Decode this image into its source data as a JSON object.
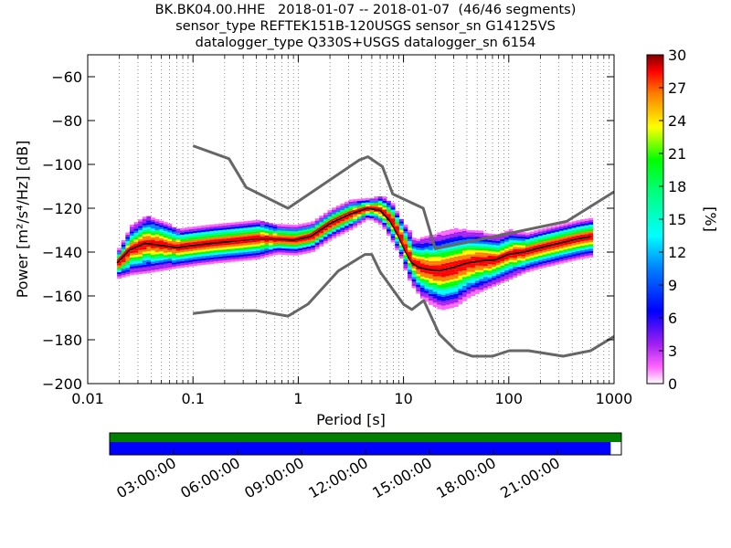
{
  "title_lines": [
    "BK.BK04.00.HHE   2018-01-07 -- 2018-01-07  (46/46 segments)",
    "sensor_type REFTEK151B-120USGS sensor_sn G14125VS",
    "datalogger_type Q330S+USGS datalogger_sn 6154"
  ],
  "chart_data": {
    "type": "heatmap",
    "xlabel": "Period [s]",
    "ylabel": "Power [m²/s⁴/Hz] [dB]",
    "x_scale": "log",
    "xlim": [
      0.01,
      1000
    ],
    "ylim": [
      -200,
      -50
    ],
    "x_ticks": [
      0.01,
      0.1,
      1,
      10,
      100,
      1000
    ],
    "x_tick_labels": [
      "0.01",
      "0.1",
      "1",
      "10",
      "100",
      "1000"
    ],
    "y_ticks": [
      -200,
      -180,
      -160,
      -140,
      -120,
      -100,
      -80,
      -60
    ],
    "y_tick_labels": [
      "−200",
      "−180",
      "−160",
      "−140",
      "−120",
      "−100",
      "−80",
      "−60"
    ],
    "grid": "dotted-vertical",
    "colorbar": {
      "label": "[%]",
      "range": [
        0,
        30
      ],
      "ticks": [
        0,
        3,
        6,
        9,
        12,
        15,
        18,
        21,
        24,
        27,
        30
      ],
      "colormap": [
        "#ffffff",
        "#ff00ff",
        "#8000ff",
        "#0000ff",
        "#0080ff",
        "#00ffff",
        "#00ff80",
        "#00ff00",
        "#ffff00",
        "#ff8000",
        "#ff0000",
        "#800000"
      ]
    },
    "series": [
      {
        "name": "NHNM",
        "color": "#666666",
        "x": [
          0.1,
          0.22,
          0.32,
          0.8,
          3.8,
          4.6,
          6.3,
          7.9,
          15.4,
          20,
          354.8,
          1000
        ],
        "y": [
          -91.5,
          -97.4,
          -110.5,
          -120,
          -98,
          -96.5,
          -101,
          -113.5,
          -120,
          -138.5,
          -126,
          -112.5
        ]
      },
      {
        "name": "NLNM",
        "color": "#666666",
        "x": [
          0.1,
          0.17,
          0.4,
          0.8,
          1.24,
          2.4,
          4.3,
          5.0,
          6.0,
          10.0,
          12.0,
          15.6,
          21.9,
          31.6,
          45,
          70,
          101,
          154,
          328,
          600,
          1000
        ],
        "y": [
          -168,
          -166.7,
          -166.7,
          -169.2,
          -163.7,
          -148.6,
          -141.1,
          -141.1,
          -149,
          -163.8,
          -166.2,
          -162.1,
          -177.5,
          -185,
          -187.5,
          -187.5,
          -185,
          -185,
          -187.5,
          -185,
          -178.5
        ]
      },
      {
        "name": "mean",
        "color": "#000000",
        "x": [
          0.019,
          0.025,
          0.035,
          0.05,
          0.07,
          0.1,
          0.15,
          0.25,
          0.4,
          0.6,
          0.9,
          1.3,
          2.0,
          3.0,
          4.5,
          6.0,
          7.5,
          9.0,
          10.5,
          12.0,
          14.0,
          17.0,
          22.0,
          30.0,
          40.0,
          55.0,
          75.0,
          100.0,
          140.0,
          200.0,
          300.0,
          450.0,
          600.0
        ],
        "y": [
          -145,
          -139,
          -136,
          -137,
          -138,
          -137,
          -136,
          -135,
          -134,
          -134,
          -134.5,
          -133,
          -127,
          -123,
          -120,
          -121,
          -126,
          -133,
          -140,
          -145,
          -147,
          -148,
          -148.5,
          -147,
          -145,
          -144,
          -143.5,
          -141,
          -140,
          -138,
          -136,
          -134,
          -133
        ]
      },
      {
        "name": "mode",
        "color": "#ff0000",
        "x": [
          0.019,
          0.025,
          0.035,
          0.05,
          0.07,
          0.1,
          0.15,
          0.25,
          0.4,
          0.6,
          0.9,
          1.3,
          2.0,
          3.0,
          4.5,
          6.0,
          7.5,
          9.0,
          10.5,
          12.0,
          14.0,
          17.0,
          22.0,
          30.0,
          40.0,
          55.0,
          75.0,
          100.0,
          140.0,
          200.0,
          300.0,
          450.0,
          600.0
        ],
        "y": [
          -144,
          -138,
          -135,
          -136,
          -137,
          -136,
          -135,
          -134.5,
          -133.5,
          -133.5,
          -134,
          -132,
          -126,
          -122,
          -119.5,
          -120,
          -125,
          -132,
          -139,
          -144,
          -146,
          -147,
          -147.5,
          -146,
          -144,
          -143,
          -142.5,
          -140,
          -139,
          -137,
          -135,
          -133,
          -132
        ]
      }
    ],
    "histogram_profile": {
      "x": [
        0.019,
        0.025,
        0.035,
        0.05,
        0.07,
        0.1,
        0.15,
        0.25,
        0.4,
        0.6,
        0.9,
        1.3,
        2.0,
        3.0,
        4.5,
        6.0,
        7.5,
        9.0,
        10.5,
        12.0,
        14.0,
        17.0,
        22.0,
        30.0,
        40.0,
        55.0,
        75.0,
        100.0,
        140.0,
        200.0,
        300.0,
        450.0,
        600.0
      ],
      "center": [
        -145,
        -139,
        -136,
        -137,
        -138,
        -137,
        -136,
        -135,
        -134,
        -134,
        -134.5,
        -133,
        -127,
        -123,
        -120,
        -121,
        -126,
        -133,
        -140,
        -145,
        -147,
        -148,
        -148.5,
        -147,
        -145,
        -144,
        -143.5,
        -141,
        -140,
        -138,
        -136,
        -134,
        -133
      ],
      "spread": [
        3,
        5,
        6,
        5,
        4,
        4,
        4,
        4,
        4,
        3,
        3,
        3,
        3,
        3,
        2,
        3,
        4,
        4,
        5,
        5,
        6,
        7,
        8,
        8,
        7,
        6,
        5,
        5,
        4,
        4,
        4,
        4,
        4
      ]
    },
    "time_axis": {
      "tick_labels": [
        "03:00:00",
        "06:00:00",
        "09:00:00",
        "12:00:00",
        "15:00:00",
        "18:00:00",
        "21:00:00"
      ],
      "tick_hours": [
        3,
        6,
        9,
        12,
        15,
        18,
        21
      ],
      "range_hours": [
        0,
        24
      ],
      "data_coverage": {
        "start_hours": 0,
        "end_hours": 24,
        "color": "#008000"
      },
      "psd_coverage": {
        "start_hours": 0,
        "end_hours": 23.5,
        "color": "#0000ff"
      }
    }
  }
}
